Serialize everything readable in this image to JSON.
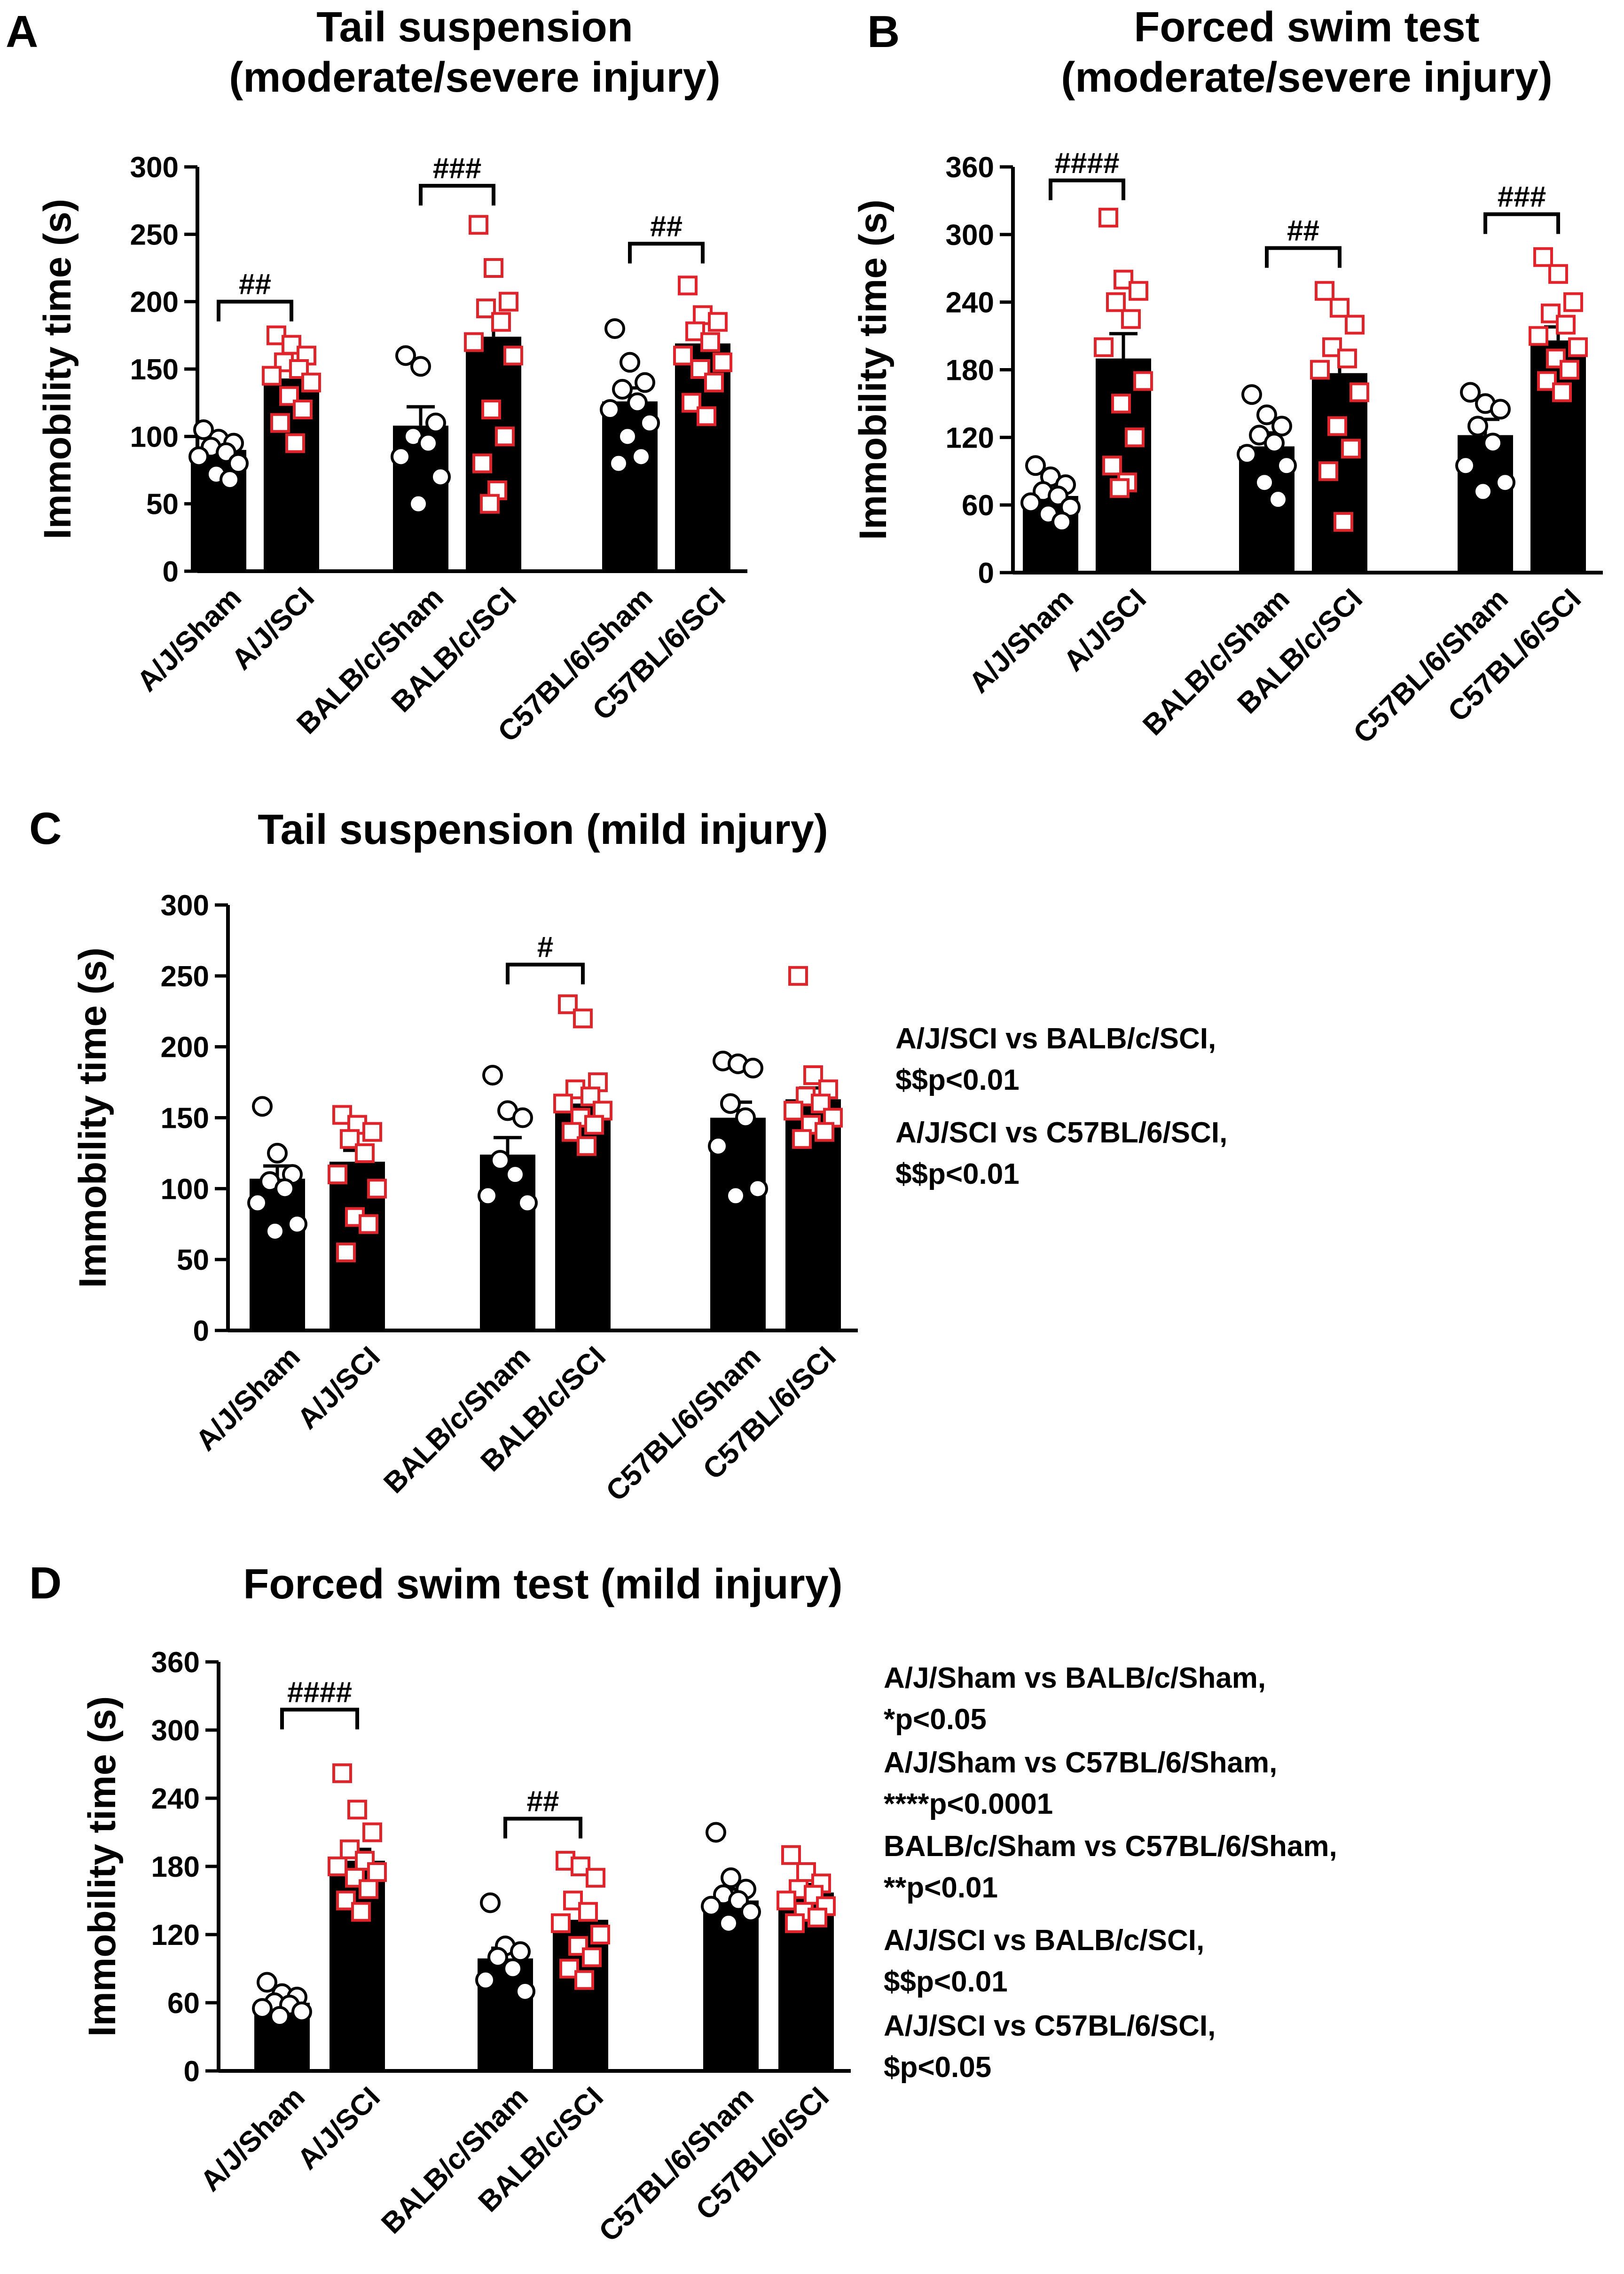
{
  "colors": {
    "bar": "#000000",
    "sham_marker": "#000000",
    "sci_marker": "#e0242b",
    "marker_fill": "#ffffff"
  },
  "chart_data": [
    {
      "panel": "A",
      "type": "bar",
      "title_lines": [
        "Tail suspension",
        "(moderate/severe injury)"
      ],
      "ylabel": "Immobility time (s)",
      "xlabel": "",
      "ylim": [
        0,
        300
      ],
      "yticks": [
        0,
        50,
        100,
        150,
        200,
        250,
        300
      ],
      "grid": false,
      "categories": [
        "A/J/Sham",
        "A/J/SCI",
        "BALB/c/Sham",
        "BALB/c/SCI",
        "C57BL/6/Sham",
        "C57BL/6/SCI"
      ],
      "means": [
        90,
        143,
        108,
        174,
        126,
        169
      ],
      "sem": [
        5,
        8,
        14,
        16,
        10,
        7
      ],
      "points": [
        [
          105,
          98,
          95,
          92,
          88,
          85,
          80,
          72,
          68
        ],
        [
          175,
          168,
          160,
          155,
          150,
          145,
          140,
          130,
          120,
          110,
          95
        ],
        [
          160,
          152,
          110,
          100,
          95,
          85,
          70,
          50
        ],
        [
          257,
          225,
          200,
          195,
          185,
          170,
          160,
          120,
          100,
          80,
          60,
          50
        ],
        [
          180,
          155,
          140,
          135,
          125,
          120,
          110,
          100,
          85,
          80
        ],
        [
          212,
          190,
          185,
          178,
          170,
          160,
          155,
          150,
          140,
          125,
          115
        ]
      ],
      "comparisons": [
        {
          "pair": [
            0,
            1
          ],
          "label": "##",
          "y": 200
        },
        {
          "pair": [
            2,
            3
          ],
          "label": "###",
          "y": 286
        },
        {
          "pair": [
            4,
            5
          ],
          "label": "##",
          "y": 243
        }
      ],
      "notes": []
    },
    {
      "panel": "B",
      "type": "bar",
      "title_lines": [
        "Forced swim test",
        "(moderate/severe injury)"
      ],
      "ylabel": "Immobility time (s)",
      "xlabel": "",
      "ylim": [
        0,
        360
      ],
      "yticks": [
        0,
        60,
        120,
        180,
        240,
        300,
        360
      ],
      "grid": false,
      "categories": [
        "A/J/Sham",
        "A/J/SCI",
        "BALB/c/Sham",
        "BALB/c/SCI",
        "C57BL/6/Sham",
        "C57BL/6/SCI"
      ],
      "means": [
        68,
        190,
        112,
        177,
        122,
        206
      ],
      "sem": [
        5,
        22,
        12,
        18,
        14,
        12
      ],
      "points": [
        [
          95,
          85,
          78,
          72,
          68,
          62,
          58,
          52,
          45
        ],
        [
          315,
          260,
          250,
          240,
          225,
          200,
          170,
          150,
          120,
          95,
          80,
          75
        ],
        [
          158,
          140,
          130,
          122,
          115,
          105,
          95,
          80,
          65
        ],
        [
          250,
          235,
          220,
          200,
          190,
          180,
          160,
          130,
          110,
          90,
          45
        ],
        [
          160,
          150,
          145,
          130,
          115,
          95,
          80,
          72
        ],
        [
          280,
          265,
          240,
          230,
          220,
          210,
          200,
          190,
          180,
          170,
          160
        ]
      ],
      "comparisons": [
        {
          "pair": [
            0,
            1
          ],
          "label": "####",
          "y": 348
        },
        {
          "pair": [
            2,
            3
          ],
          "label": "##",
          "y": 288
        },
        {
          "pair": [
            4,
            5
          ],
          "label": "###",
          "y": 318
        }
      ],
      "notes": []
    },
    {
      "panel": "C",
      "type": "bar",
      "title_lines": [
        "Tail suspension (mild injury)"
      ],
      "ylabel": "Immobility time (s)",
      "xlabel": "",
      "ylim": [
        0,
        300
      ],
      "yticks": [
        0,
        50,
        100,
        150,
        200,
        250,
        300
      ],
      "grid": false,
      "categories": [
        "A/J/Sham",
        "A/J/SCI",
        "BALB/c/Sham",
        "BALB/c/SCI",
        "C57BL/6/Sham",
        "C57BL/6/SCI"
      ],
      "means": [
        107,
        119,
        124,
        160,
        150,
        163
      ],
      "sem": [
        9,
        8,
        12,
        8,
        11,
        8
      ],
      "points": [
        [
          158,
          125,
          110,
          105,
          100,
          90,
          75,
          70
        ],
        [
          152,
          145,
          140,
          135,
          125,
          110,
          100,
          80,
          75,
          55
        ],
        [
          180,
          155,
          150,
          120,
          110,
          95,
          90
        ],
        [
          230,
          220,
          175,
          170,
          165,
          160,
          155,
          150,
          145,
          140,
          130
        ],
        [
          190,
          188,
          185,
          160,
          150,
          130,
          100,
          95
        ],
        [
          250,
          180,
          170,
          165,
          160,
          155,
          150,
          145,
          140,
          135
        ]
      ],
      "comparisons": [
        {
          "pair": [
            2,
            3
          ],
          "label": "#",
          "y": 258
        }
      ],
      "notes": [
        "A/J/SCI vs BALB/c/SCI,",
        "$$p<0.01",
        "A/J/SCI vs C57BL/6/SCI,",
        "$$p<0.01"
      ]
    },
    {
      "panel": "D",
      "type": "bar",
      "title_lines": [
        "Forced swim test (mild injury)"
      ],
      "ylabel": "Immobility time (s)",
      "xlabel": "",
      "ylim": [
        0,
        360
      ],
      "yticks": [
        0,
        60,
        120,
        180,
        240,
        300,
        360
      ],
      "grid": false,
      "categories": [
        "A/J/Sham",
        "A/J/SCI",
        "BALB/c/Sham",
        "BALB/c/SCI",
        "C57BL/6/Sham",
        "C57BL/6/SCI"
      ],
      "means": [
        60,
        185,
        99,
        133,
        150,
        157
      ],
      "sem": [
        4,
        10,
        9,
        12,
        10,
        7
      ],
      "points": [
        [
          78,
          68,
          65,
          60,
          58,
          55,
          52,
          48
        ],
        [
          262,
          230,
          210,
          195,
          185,
          180,
          175,
          170,
          160,
          150,
          140
        ],
        [
          148,
          110,
          105,
          100,
          90,
          80,
          70
        ],
        [
          185,
          180,
          170,
          150,
          140,
          130,
          120,
          110,
          100,
          90,
          80
        ],
        [
          210,
          170,
          160,
          155,
          150,
          145,
          140,
          130
        ],
        [
          190,
          175,
          165,
          160,
          155,
          150,
          145,
          140,
          135,
          130
        ]
      ],
      "comparisons": [
        {
          "pair": [
            0,
            1
          ],
          "label": "####",
          "y": 318
        },
        {
          "pair": [
            2,
            3
          ],
          "label": "##",
          "y": 222
        }
      ],
      "notes": [
        "A/J/Sham vs BALB/c/Sham,",
        "*p<0.05",
        "A/J/Sham vs C57BL/6/Sham,",
        "****p<0.0001",
        "BALB/c/Sham vs C57BL/6/Sham,",
        "**p<0.01",
        "A/J/SCI vs BALB/c/SCI,",
        "$$p<0.01",
        "A/J/SCI vs C57BL/6/SCI,",
        "$p<0.05"
      ]
    }
  ]
}
